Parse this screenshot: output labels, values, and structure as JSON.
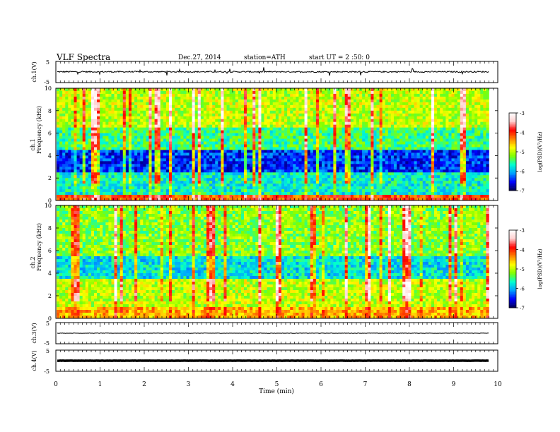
{
  "header": {
    "title": "VLF  Spectra",
    "date": "Dec.27, 2014",
    "station": "station=ATH",
    "start": "start  UT  =   2  :50: 0"
  },
  "colors": {
    "colormap": [
      "#000050",
      "#0000ff",
      "#00a0ff",
      "#00ffd0",
      "#80ff00",
      "#ffff00",
      "#ff8000",
      "#ff0000",
      "#ffd0d0",
      "#ffffff"
    ]
  },
  "chart_data": [
    {
      "type": "line",
      "id": "ch1",
      "ylabel": "ch.1(V)",
      "ylim": [
        -5,
        5
      ],
      "yticks": [
        "5",
        "-5"
      ],
      "signal_level": 0.1,
      "signal_spread": 0.6
    },
    {
      "type": "heatmap",
      "id": "ch1_spec",
      "ylabel_top": "ch.1",
      "ylabel": "Frequency  (kHz)",
      "ylim": [
        0,
        10
      ],
      "yticks": [
        "0",
        "2",
        "4",
        "6",
        "8",
        "10"
      ],
      "colorbar": {
        "label": "log(PSD)(V²/Hz)",
        "range": [
          -7,
          -3
        ],
        "ticks": [
          "-3",
          "-4",
          "-5",
          "-6",
          "-7"
        ]
      }
    },
    {
      "type": "heatmap",
      "id": "ch2_spec",
      "ylabel_top": "ch.2",
      "ylabel": "Frequency  (kHz)",
      "ylim": [
        0,
        10
      ],
      "yticks": [
        "0",
        "2",
        "4",
        "6",
        "8",
        "10"
      ],
      "colorbar": {
        "label": "log(PSD)(V²/Hz)",
        "range": [
          -7,
          -3
        ],
        "ticks": [
          "-3",
          "-4",
          "-5",
          "-6",
          "-7"
        ]
      }
    },
    {
      "type": "line",
      "id": "ch3",
      "ylabel": "ch.3(V)",
      "ylim": [
        -5,
        5
      ],
      "yticks": [
        "5",
        "-5"
      ],
      "signal_level": 0.0,
      "signal_spread": 0.15
    },
    {
      "type": "line",
      "id": "ch4",
      "ylabel": "ch.4(V)",
      "ylim": [
        -5,
        5
      ],
      "yticks": [
        "5",
        "-5"
      ],
      "signal_level": 0.0,
      "signal_spread": 0.1
    }
  ],
  "xaxis": {
    "label": "Time  (min)",
    "xlim": [
      0,
      10
    ],
    "data_end": 9.8,
    "ticks": [
      "0",
      "1",
      "2",
      "3",
      "4",
      "5",
      "6",
      "7",
      "8",
      "9",
      "10"
    ]
  }
}
